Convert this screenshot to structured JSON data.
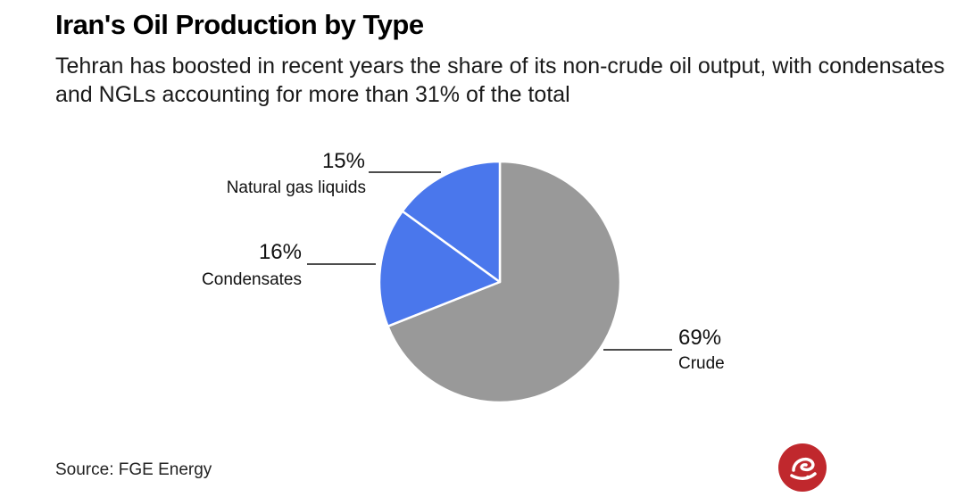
{
  "header": {
    "title": "Iran's Oil Production by Type",
    "subtitle": "Tehran has boosted in recent years the share of its non-crude oil output, with condensates and NGLs accounting for more than 31% of the total"
  },
  "chart_data": {
    "type": "pie",
    "slices": [
      {
        "label": "Crude",
        "value": 69,
        "display": "69%",
        "color": "#999999"
      },
      {
        "label": "Condensates",
        "value": 16,
        "display": "16%",
        "color": "#4a77ec"
      },
      {
        "label": "Natural gas liquids",
        "value": 15,
        "display": "15%",
        "color": "#4a77ec"
      }
    ],
    "start_position": "12 o'clock",
    "direction": "clockwise"
  },
  "footer": {
    "source": "Source: FGE Energy"
  },
  "logo": {
    "icon": "logo-icon",
    "color": "#c0282d"
  }
}
